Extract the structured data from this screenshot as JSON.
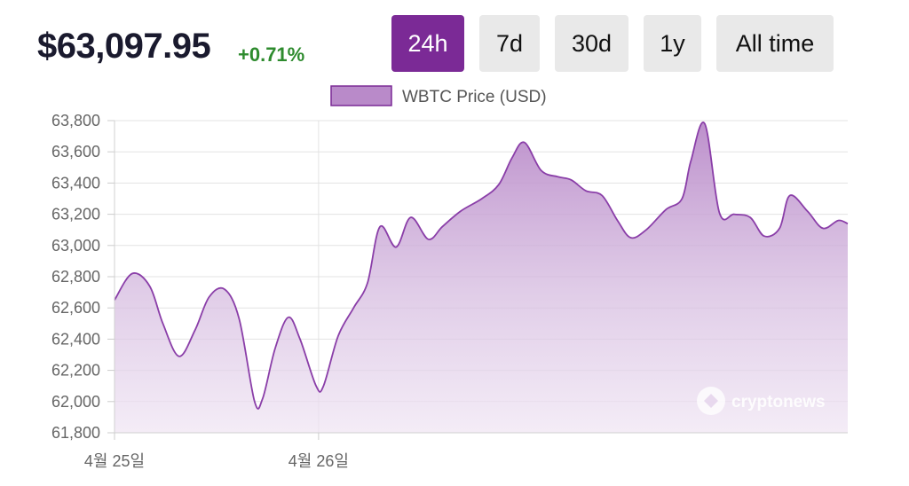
{
  "header": {
    "price": "$63,097.95",
    "change": "+0.71%"
  },
  "ranges": [
    {
      "label": "24h",
      "active": true
    },
    {
      "label": "7d",
      "active": false
    },
    {
      "label": "30d",
      "active": false
    },
    {
      "label": "1y",
      "active": false
    },
    {
      "label": "All time",
      "active": false
    }
  ],
  "watermark": "cryptonews",
  "colors": {
    "accent": "#7b2a96",
    "line": "#8a3ea8",
    "fill_top": "#b98ac9",
    "positive": "#2e8b2e"
  },
  "chart_data": {
    "type": "area",
    "legend": "WBTC Price (USD)",
    "legend_position": "top",
    "grid": true,
    "x_ticks": [
      {
        "label": "4월 25일",
        "t": 0
      },
      {
        "label": "4월 26일",
        "t": 0.2783
      }
    ],
    "x_range": [
      0,
      1
    ],
    "ylim": [
      61800,
      63800
    ],
    "y_ticks": [
      63800,
      63600,
      63400,
      63200,
      63000,
      62800,
      62600,
      62400,
      62200,
      62000,
      61800
    ],
    "series": [
      {
        "name": "WBTC Price (USD)",
        "points": [
          [
            0.0,
            62650
          ],
          [
            0.024,
            62820
          ],
          [
            0.048,
            62740
          ],
          [
            0.066,
            62500
          ],
          [
            0.088,
            62290
          ],
          [
            0.11,
            62460
          ],
          [
            0.129,
            62670
          ],
          [
            0.15,
            62720
          ],
          [
            0.17,
            62530
          ],
          [
            0.191,
            62000
          ],
          [
            0.202,
            62020
          ],
          [
            0.219,
            62340
          ],
          [
            0.237,
            62540
          ],
          [
            0.253,
            62400
          ],
          [
            0.275,
            62100
          ],
          [
            0.285,
            62100
          ],
          [
            0.305,
            62420
          ],
          [
            0.326,
            62600
          ],
          [
            0.345,
            62760
          ],
          [
            0.362,
            63120
          ],
          [
            0.384,
            62990
          ],
          [
            0.404,
            63180
          ],
          [
            0.428,
            63040
          ],
          [
            0.447,
            63120
          ],
          [
            0.472,
            63220
          ],
          [
            0.501,
            63300
          ],
          [
            0.524,
            63390
          ],
          [
            0.542,
            63560
          ],
          [
            0.559,
            63660
          ],
          [
            0.582,
            63480
          ],
          [
            0.605,
            63440
          ],
          [
            0.623,
            63420
          ],
          [
            0.643,
            63350
          ],
          [
            0.665,
            63320
          ],
          [
            0.686,
            63160
          ],
          [
            0.704,
            63050
          ],
          [
            0.725,
            63100
          ],
          [
            0.752,
            63230
          ],
          [
            0.774,
            63300
          ],
          [
            0.786,
            63540
          ],
          [
            0.805,
            63780
          ],
          [
            0.825,
            63210
          ],
          [
            0.845,
            63200
          ],
          [
            0.867,
            63180
          ],
          [
            0.886,
            63060
          ],
          [
            0.907,
            63110
          ],
          [
            0.921,
            63320
          ],
          [
            0.945,
            63220
          ],
          [
            0.966,
            63110
          ],
          [
            0.987,
            63160
          ],
          [
            1.0,
            63140
          ]
        ]
      }
    ]
  }
}
